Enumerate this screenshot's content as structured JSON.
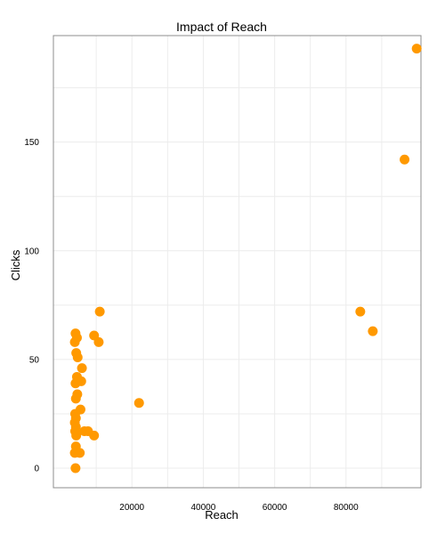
{
  "chart_data": {
    "type": "scatter",
    "title": "Impact of Reach",
    "xlabel": "Reach",
    "ylabel": "Clicks",
    "xlim": [
      -2000,
      101000
    ],
    "ylim": [
      -9,
      199
    ],
    "x_ticks": [
      20000,
      40000,
      60000,
      80000
    ],
    "y_ticks": [
      0,
      50,
      100,
      150
    ],
    "x_minor_grid": [
      10000,
      30000,
      50000,
      70000,
      90000
    ],
    "y_minor_grid": [
      25,
      75,
      125,
      175
    ],
    "grid": true,
    "point_color": "#ff9900",
    "points": [
      {
        "x": 99800,
        "y": 193
      },
      {
        "x": 96400,
        "y": 142
      },
      {
        "x": 84000,
        "y": 72
      },
      {
        "x": 87500,
        "y": 63
      },
      {
        "x": 11000,
        "y": 72
      },
      {
        "x": 9400,
        "y": 61
      },
      {
        "x": 10700,
        "y": 58
      },
      {
        "x": 22000,
        "y": 30
      },
      {
        "x": 4200,
        "y": 62
      },
      {
        "x": 4600,
        "y": 60
      },
      {
        "x": 4000,
        "y": 58
      },
      {
        "x": 4400,
        "y": 53
      },
      {
        "x": 4800,
        "y": 51
      },
      {
        "x": 6000,
        "y": 46
      },
      {
        "x": 4600,
        "y": 42
      },
      {
        "x": 5800,
        "y": 40
      },
      {
        "x": 4200,
        "y": 39
      },
      {
        "x": 4700,
        "y": 34
      },
      {
        "x": 4300,
        "y": 32
      },
      {
        "x": 5600,
        "y": 27
      },
      {
        "x": 4100,
        "y": 25
      },
      {
        "x": 4300,
        "y": 23
      },
      {
        "x": 4000,
        "y": 21
      },
      {
        "x": 4300,
        "y": 19
      },
      {
        "x": 4100,
        "y": 17
      },
      {
        "x": 6700,
        "y": 17
      },
      {
        "x": 7700,
        "y": 17
      },
      {
        "x": 4400,
        "y": 15
      },
      {
        "x": 9400,
        "y": 15
      },
      {
        "x": 4300,
        "y": 10
      },
      {
        "x": 4000,
        "y": 7
      },
      {
        "x": 5400,
        "y": 7
      },
      {
        "x": 4200,
        "y": 0
      }
    ]
  }
}
